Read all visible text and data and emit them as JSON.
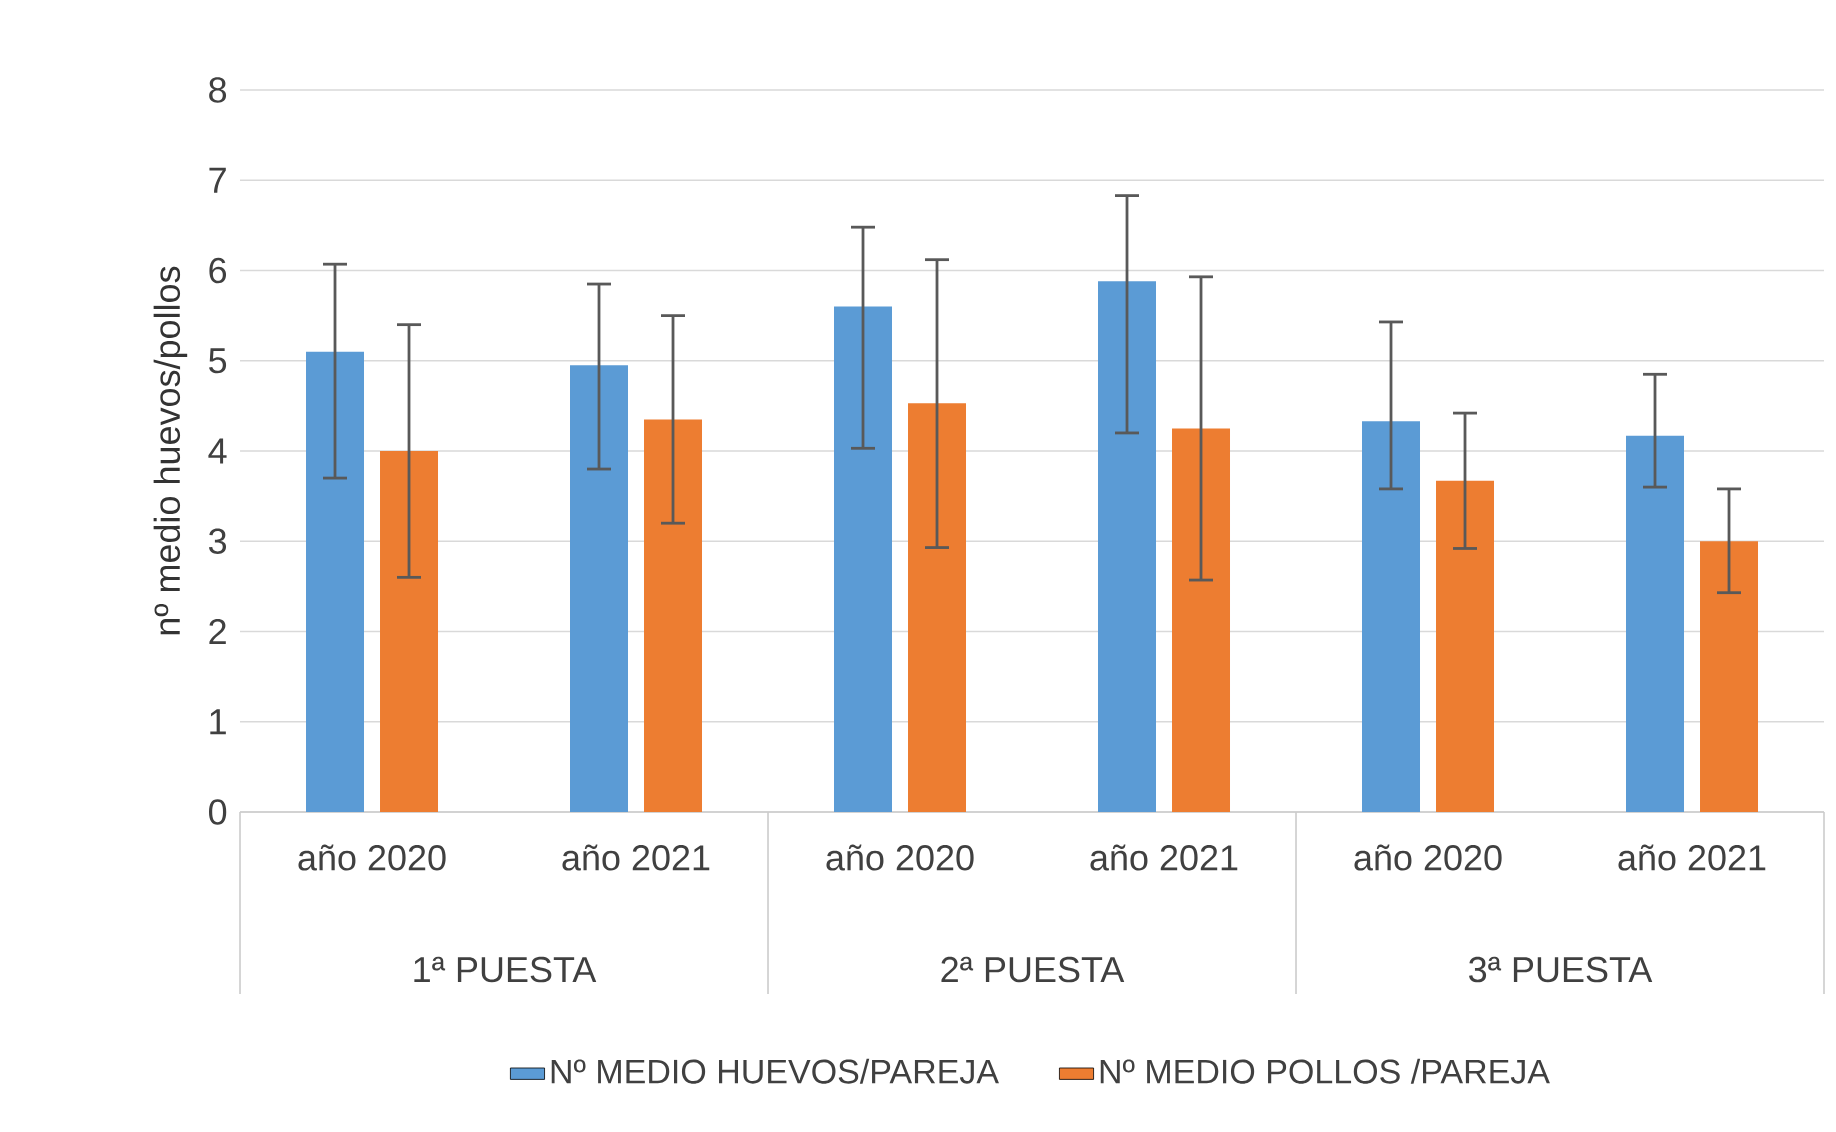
{
  "chart_data": {
    "type": "bar",
    "ylabel": "nº medio huevos/pollos",
    "categories": [
      "año 2020",
      "año 2021",
      "año 2020",
      "año 2021",
      "año 2020",
      "año 2021"
    ],
    "annotations": [
      "1ª PUESTA",
      "2ª PUESTA",
      "3ª PUESTA"
    ],
    "series": [
      {
        "name": "Nº MEDIO HUEVOS/PAREJA",
        "color": "#5b9bd5",
        "values": [
          5.1,
          4.95,
          5.6,
          5.88,
          4.33,
          4.17
        ],
        "errors": [
          [
            3.7,
            6.07
          ],
          [
            3.8,
            5.85
          ],
          [
            4.03,
            6.48
          ],
          [
            4.2,
            6.83
          ],
          [
            3.58,
            5.43
          ],
          [
            3.6,
            4.85
          ]
        ]
      },
      {
        "name": "Nº MEDIO POLLOS /PAREJA",
        "color": "#ed7d31",
        "values": [
          4.0,
          4.35,
          4.53,
          4.25,
          3.67,
          3.0
        ],
        "errors": [
          [
            2.6,
            5.4
          ],
          [
            3.2,
            5.5
          ],
          [
            2.93,
            6.12
          ],
          [
            2.57,
            5.93
          ],
          [
            2.92,
            4.42
          ],
          [
            2.43,
            3.58
          ]
        ]
      }
    ],
    "ylim": [
      0,
      8
    ],
    "yticks": [
      0,
      1,
      2,
      3,
      4,
      5,
      6,
      7,
      8
    ],
    "grid": "y",
    "legend": "bottom"
  }
}
